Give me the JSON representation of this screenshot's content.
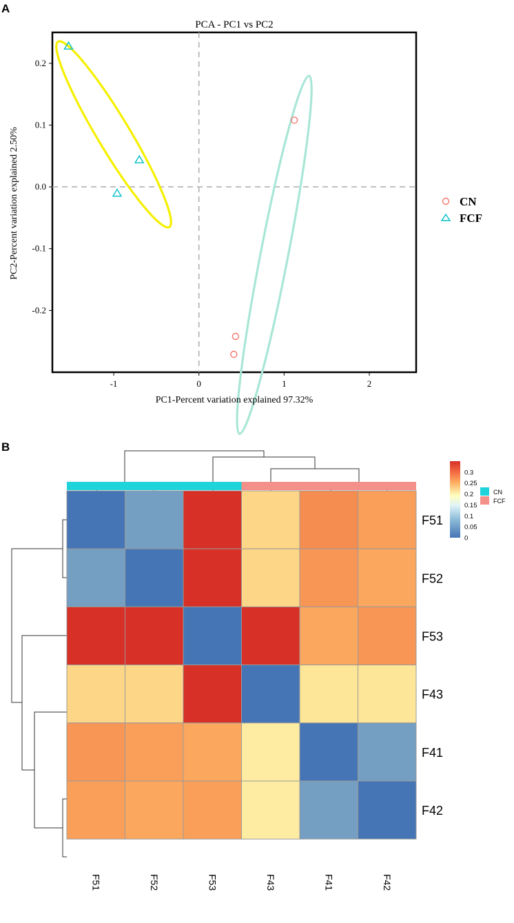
{
  "colors": {
    "cn": "#f8766d",
    "fcf": "#00bfc4",
    "ellipse_fcf": "#f5f000",
    "ellipse_cn": "#a8e6d6",
    "bar_cn": "#1fd3da",
    "bar_fcf": "#f4908a"
  },
  "chart_data": [
    {
      "panel": "A",
      "type": "scatter",
      "title": "PCA - PC1 vs PC2",
      "xlabel": "PC1-Percent variation explained 97.32%",
      "ylabel": "PC2-Percent variation explained 2.50%",
      "xlim": [
        -1.72,
        2.55
      ],
      "ylim": [
        -0.3,
        0.25
      ],
      "xticks": [
        -1,
        0,
        1,
        2
      ],
      "yticks": [
        0.2,
        0.1,
        0.0,
        -0.1,
        -0.2
      ],
      "ytick_labels": [
        "0.2",
        "0.1",
        "0.0",
        "-0.1",
        "-0.2"
      ],
      "reference_lines": {
        "x": 0,
        "y": 0
      },
      "legend": [
        {
          "label": "CN",
          "marker": "circle"
        },
        {
          "label": "FCF",
          "marker": "triangle"
        }
      ],
      "series": [
        {
          "name": "CN",
          "marker": "circle",
          "points": [
            [
              1.12,
              0.108
            ],
            [
              0.43,
              -0.242
            ],
            [
              0.41,
              -0.271
            ]
          ]
        },
        {
          "name": "FCF",
          "marker": "triangle",
          "points": [
            [
              -1.53,
              0.228
            ],
            [
              -0.7,
              0.044
            ],
            [
              -0.96,
              -0.01
            ]
          ]
        }
      ],
      "ellipses": [
        {
          "group": "FCF",
          "color": "yellow"
        },
        {
          "group": "CN",
          "color": "mint"
        }
      ]
    },
    {
      "panel": "B",
      "type": "heatmap",
      "rows": [
        "F51",
        "F52",
        "F53",
        "F43",
        "F41",
        "F42"
      ],
      "columns": [
        "F51",
        "F52",
        "F53",
        "F43",
        "F41",
        "F42"
      ],
      "column_groups": [
        "CN",
        "CN",
        "CN",
        "FCF",
        "FCF",
        "FCF"
      ],
      "values": [
        [
          0.0,
          0.06,
          0.35,
          0.22,
          0.3,
          0.28
        ],
        [
          0.06,
          0.0,
          0.35,
          0.22,
          0.29,
          0.27
        ],
        [
          0.35,
          0.35,
          0.0,
          0.35,
          0.27,
          0.29
        ],
        [
          0.22,
          0.22,
          0.35,
          0.0,
          0.2,
          0.2
        ],
        [
          0.29,
          0.28,
          0.27,
          0.19,
          0.0,
          0.06
        ],
        [
          0.28,
          0.27,
          0.28,
          0.19,
          0.06,
          0.0
        ]
      ],
      "colorbar": {
        "min": 0,
        "max": 0.35,
        "ticks": [
          "0.3",
          "0.25",
          "0.2",
          "0.15",
          "0.1",
          "0.05",
          "0"
        ],
        "tick_values": [
          0.3,
          0.25,
          0.2,
          0.15,
          0.1,
          0.05,
          0
        ]
      },
      "legend": [
        "CN",
        "FCF"
      ]
    }
  ]
}
